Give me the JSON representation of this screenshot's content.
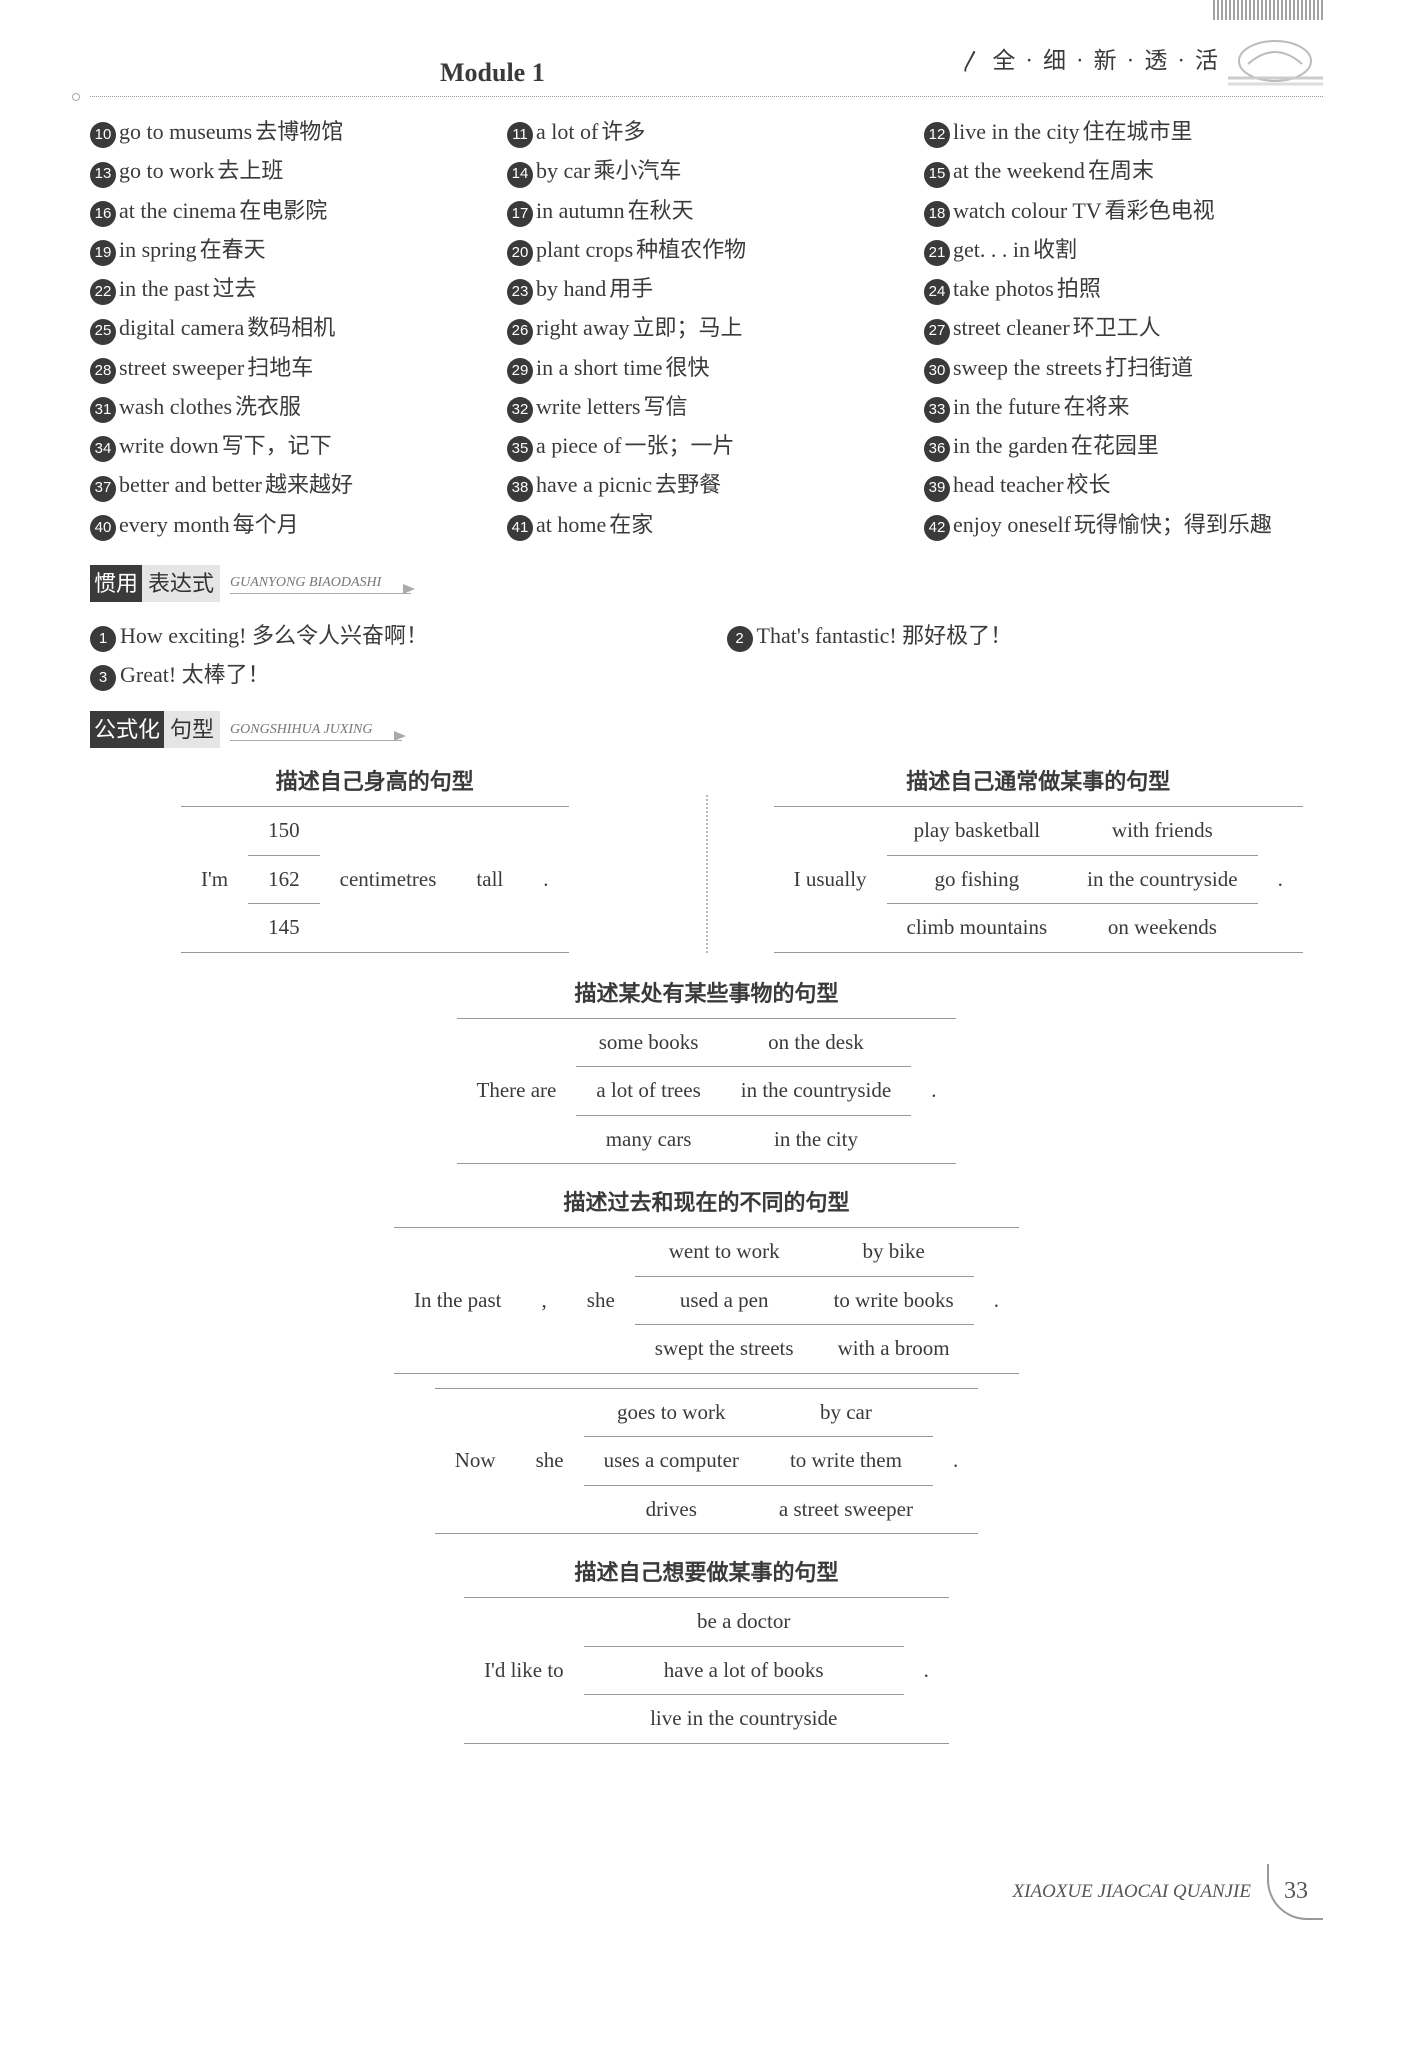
{
  "header": {
    "module": "Module 1",
    "tagline_chars": [
      "全",
      "细",
      "新",
      "透",
      "活"
    ]
  },
  "phrases": [
    {
      "n": "10",
      "en": "go to museums",
      "zh": "去博物馆"
    },
    {
      "n": "11",
      "en": "a lot of",
      "zh": "许多"
    },
    {
      "n": "12",
      "en": "live in the city",
      "zh": "住在城市里"
    },
    {
      "n": "13",
      "en": "go to work",
      "zh": "去上班"
    },
    {
      "n": "14",
      "en": "by car",
      "zh": "乘小汽车"
    },
    {
      "n": "15",
      "en": "at the weekend",
      "zh": "在周末"
    },
    {
      "n": "16",
      "en": "at the cinema",
      "zh": "在电影院"
    },
    {
      "n": "17",
      "en": "in autumn",
      "zh": "在秋天"
    },
    {
      "n": "18",
      "en": "watch colour TV",
      "zh": "看彩色电视"
    },
    {
      "n": "19",
      "en": "in spring",
      "zh": "在春天"
    },
    {
      "n": "20",
      "en": "plant crops",
      "zh": "种植农作物"
    },
    {
      "n": "21",
      "en": "get. . . in",
      "zh": "收割"
    },
    {
      "n": "22",
      "en": "in the past",
      "zh": "过去"
    },
    {
      "n": "23",
      "en": "by hand",
      "zh": "用手"
    },
    {
      "n": "24",
      "en": "take photos",
      "zh": "拍照"
    },
    {
      "n": "25",
      "en": "digital camera",
      "zh": "数码相机"
    },
    {
      "n": "26",
      "en": "right away",
      "zh": "立即；马上"
    },
    {
      "n": "27",
      "en": "street cleaner",
      "zh": "环卫工人"
    },
    {
      "n": "28",
      "en": "street sweeper",
      "zh": "扫地车"
    },
    {
      "n": "29",
      "en": "in a short time",
      "zh": "很快"
    },
    {
      "n": "30",
      "en": "sweep the streets",
      "zh": "打扫街道"
    },
    {
      "n": "31",
      "en": "wash clothes",
      "zh": "洗衣服"
    },
    {
      "n": "32",
      "en": "write letters",
      "zh": "写信"
    },
    {
      "n": "33",
      "en": "in the future",
      "zh": "在将来"
    },
    {
      "n": "34",
      "en": "write down",
      "zh": "写下，记下"
    },
    {
      "n": "35",
      "en": "a piece of",
      "zh": "一张；一片"
    },
    {
      "n": "36",
      "en": "in the garden",
      "zh": "在花园里"
    },
    {
      "n": "37",
      "en": "better and better",
      "zh": "越来越好"
    },
    {
      "n": "38",
      "en": "have a picnic",
      "zh": "去野餐"
    },
    {
      "n": "39",
      "en": "head teacher",
      "zh": "校长"
    },
    {
      "n": "40",
      "en": "every month",
      "zh": "每个月"
    },
    {
      "n": "41",
      "en": "at home",
      "zh": "在家"
    },
    {
      "n": "42",
      "en": "enjoy oneself",
      "zh": "玩得愉快；得到乐趣"
    }
  ],
  "section_expr": {
    "label_blk": "惯用",
    "label_gry": "表达式",
    "pinyin": "GUANYONG BIAODASHI",
    "items": [
      {
        "n": "1",
        "txt": "How exciting!  多么令人兴奋啊！"
      },
      {
        "n": "2",
        "txt": "That's fantastic!  那好极了！"
      },
      {
        "n": "3",
        "txt": "Great!  太棒了！"
      }
    ]
  },
  "section_sent": {
    "label_blk": "公式化",
    "label_gry": "句型",
    "pinyin": "GONGSHIHUA JUXING"
  },
  "sent_height": {
    "title": "描述自己身高的句型",
    "subject": "I'm",
    "vals": [
      "150",
      "162",
      "145"
    ],
    "unit": "centimetres",
    "adj": "tall",
    "end": "."
  },
  "sent_usually": {
    "title": "描述自己通常做某事的句型",
    "subject": "I usually",
    "verbs": [
      "play basketball",
      "go fishing",
      "climb mountains"
    ],
    "advs": [
      "with friends",
      "in the countryside",
      "on weekends"
    ],
    "end": "."
  },
  "sent_there": {
    "title": "描述某处有某些事物的句型",
    "subject": "There are",
    "objs": [
      "some books",
      "a lot of trees",
      "many cars"
    ],
    "places": [
      "on the desk",
      "in the countryside",
      "in the city"
    ],
    "end": "."
  },
  "sent_past": {
    "title": "描述过去和现在的不同的句型",
    "row1": {
      "lead": "In the past",
      "comma": ",",
      "subj": "she",
      "verbs": [
        "went to work",
        "used a pen",
        "swept the streets"
      ],
      "advs": [
        "by bike",
        "to write books",
        "with a broom"
      ],
      "end": "."
    },
    "row2": {
      "lead": "Now",
      "subj": "she",
      "verbs": [
        "goes to work",
        "uses a computer",
        "drives"
      ],
      "advs": [
        "by car",
        "to write them",
        "a street sweeper"
      ],
      "end": "."
    }
  },
  "sent_like": {
    "title": "描述自己想要做某事的句型",
    "subject": "I'd like to",
    "objs": [
      "be a doctor",
      "have a lot of books",
      "live in the countryside"
    ],
    "end": "."
  },
  "footer": {
    "pinyin": "XIAOXUE JIAOCAI QUANJIE",
    "page": "33"
  }
}
